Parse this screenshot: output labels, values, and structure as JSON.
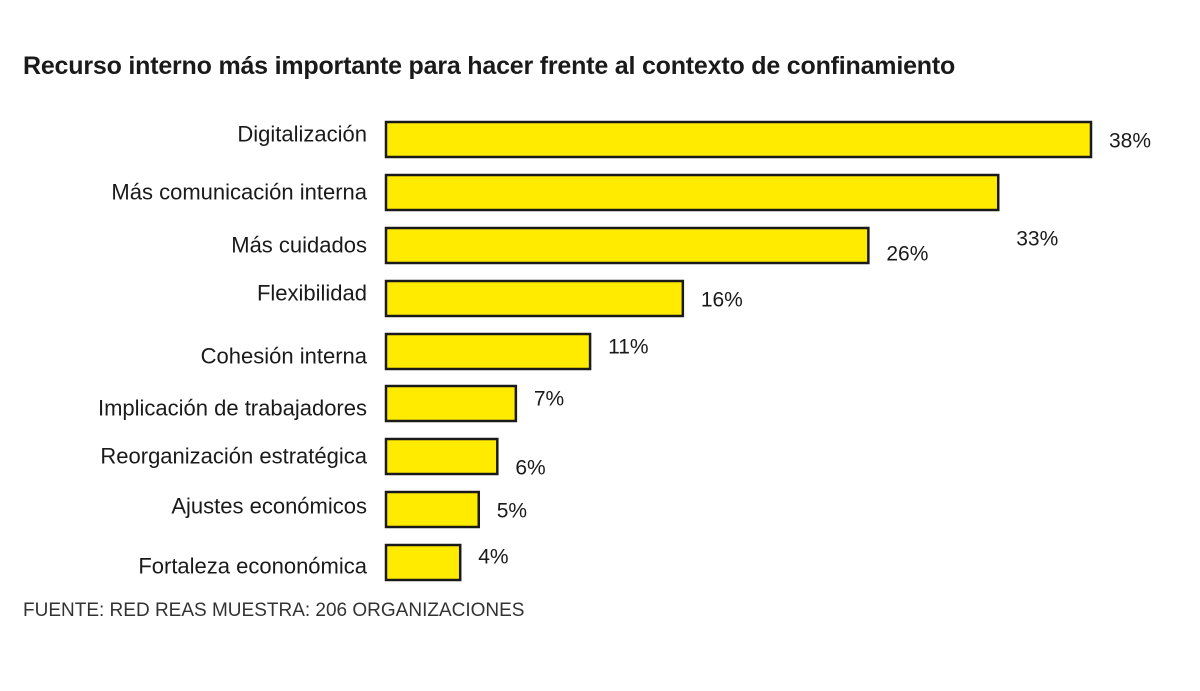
{
  "chart_data": {
    "type": "bar",
    "orientation": "horizontal",
    "title": "Recurso interno más importante para hacer frente al contexto de confinamiento",
    "categories": [
      "Digitalización",
      "Más comunicación interna",
      "Más cuidados",
      "Flexibilidad",
      "Cohesión interna",
      "Implicación de trabajadores",
      "Reorganización estratégica",
      "Ajustes económicos",
      "Fortaleza econonómica"
    ],
    "values": [
      38,
      33,
      26,
      16,
      11,
      7,
      6,
      5,
      4
    ],
    "value_labels": [
      "38%",
      "33%",
      "26%",
      "16%",
      "11%",
      "7%",
      "6%",
      "5%",
      "4%"
    ],
    "unit": "%",
    "xlim": [
      0,
      38
    ],
    "grid": false,
    "legend": "none",
    "bar_color": "#FFEB00",
    "bar_outline_color": "#1a1a1a"
  },
  "source": "FUENTE: RED REAS MUESTRA: 206 ORGANIZACIONES"
}
